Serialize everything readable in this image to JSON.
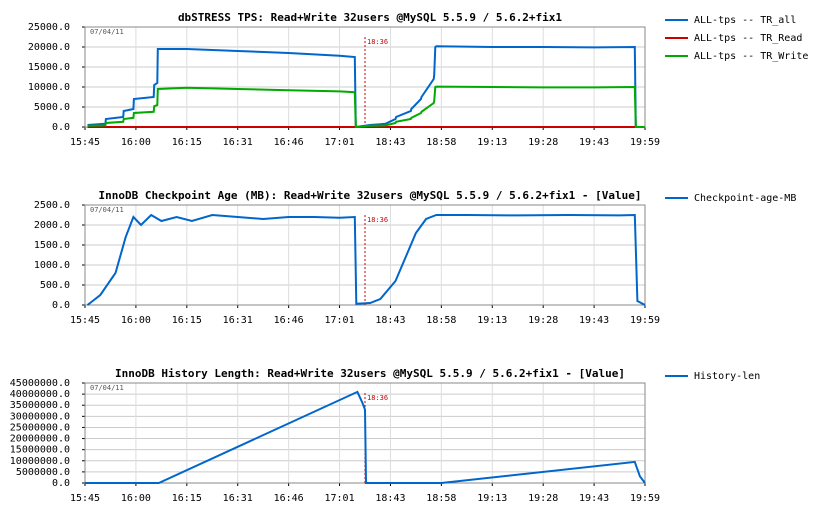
{
  "chart_data": [
    {
      "type": "line",
      "title": "dbSTRESS TPS: Read+Write 32users @MySQL 5.5.9 / 5.6.2+fix1",
      "date": "07/04/11",
      "marker": {
        "x": 5.5,
        "label": "18:36",
        "color": "#cc0000"
      },
      "grid": true,
      "xlim": [
        0,
        11
      ],
      "xticks": [
        {
          "value": 0,
          "label": "15:45"
        },
        {
          "value": 1,
          "label": "16:00"
        },
        {
          "value": 2,
          "label": "16:15"
        },
        {
          "value": 3,
          "label": "16:31"
        },
        {
          "value": 4,
          "label": "16:46"
        },
        {
          "value": 5,
          "label": "17:01"
        },
        {
          "value": 6,
          "label": "18:43"
        },
        {
          "value": 7,
          "label": "18:58"
        },
        {
          "value": 8,
          "label": "19:13"
        },
        {
          "value": 9,
          "label": "19:28"
        },
        {
          "value": 10,
          "label": "19:43"
        },
        {
          "value": 11,
          "label": "19:59"
        }
      ],
      "ylim": [
        0,
        25000
      ],
      "yticks": [
        {
          "value": 0,
          "label": "0.0"
        },
        {
          "value": 5000,
          "label": "5000.0"
        },
        {
          "value": 10000,
          "label": "10000.0"
        },
        {
          "value": 15000,
          "label": "15000.0"
        },
        {
          "value": 20000,
          "label": "20000.0"
        },
        {
          "value": 25000,
          "label": "25000.0"
        }
      ],
      "x": [
        0.05,
        0.4,
        0.41,
        0.75,
        0.76,
        0.95,
        0.96,
        1.35,
        1.36,
        1.42,
        1.43,
        2,
        3,
        4,
        5,
        5.3,
        5.32,
        5.6,
        5.9,
        6.1,
        6.11,
        6.4,
        6.41,
        6.6,
        6.61,
        6.85,
        6.86,
        6.88,
        6.9,
        8,
        9,
        10,
        10.8,
        10.82,
        11
      ],
      "series": [
        {
          "name": "ALL-tps -- TR_all",
          "color": "#0066cc",
          "values": [
            500,
            800,
            2000,
            2500,
            4000,
            4500,
            7000,
            7500,
            10500,
            11000,
            19500,
            19500,
            19000,
            18500,
            17800,
            17500,
            0,
            500,
            800,
            2000,
            2500,
            4000,
            4500,
            7000,
            7500,
            12000,
            13000,
            20000,
            20200,
            20000,
            20000,
            19900,
            20000,
            0,
            0
          ]
        },
        {
          "name": "ALL-tps -- TR_Read",
          "color": "#cc0000",
          "values": [
            0,
            0,
            0,
            0,
            0,
            0,
            0,
            0,
            0,
            0,
            0,
            0,
            0,
            0,
            0,
            0,
            0,
            0,
            0,
            0,
            0,
            0,
            0,
            0,
            0,
            0,
            0,
            0,
            0,
            0,
            0,
            0,
            0,
            0,
            0
          ]
        },
        {
          "name": "ALL-tps -- TR_Write",
          "color": "#00aa00",
          "values": [
            300,
            400,
            1000,
            1300,
            2000,
            2300,
            3500,
            3800,
            5200,
            5500,
            9500,
            9800,
            9500,
            9200,
            8900,
            8700,
            0,
            300,
            400,
            1000,
            1300,
            2000,
            2300,
            3500,
            3800,
            6000,
            6500,
            10000,
            10100,
            10000,
            9900,
            9900,
            10000,
            0,
            0
          ]
        }
      ]
    },
    {
      "type": "line",
      "title": "InnoDB Checkpoint Age (MB): Read+Write 32users @MySQL 5.5.9 / 5.6.2+fix1 - [Value]",
      "date": "07/04/11",
      "marker": {
        "x": 5.5,
        "label": "18:36",
        "color": "#cc0000"
      },
      "grid": true,
      "xlim": [
        0,
        11
      ],
      "xticks": [
        {
          "value": 0,
          "label": "15:45"
        },
        {
          "value": 1,
          "label": "16:00"
        },
        {
          "value": 2,
          "label": "16:15"
        },
        {
          "value": 3,
          "label": "16:31"
        },
        {
          "value": 4,
          "label": "16:46"
        },
        {
          "value": 5,
          "label": "17:01"
        },
        {
          "value": 6,
          "label": "18:43"
        },
        {
          "value": 7,
          "label": "18:58"
        },
        {
          "value": 8,
          "label": "19:13"
        },
        {
          "value": 9,
          "label": "19:28"
        },
        {
          "value": 10,
          "label": "19:43"
        },
        {
          "value": 11,
          "label": "19:59"
        }
      ],
      "ylim": [
        0,
        2500
      ],
      "yticks": [
        {
          "value": 0,
          "label": "0.0"
        },
        {
          "value": 500,
          "label": "500.0"
        },
        {
          "value": 1000,
          "label": "1000.0"
        },
        {
          "value": 1500,
          "label": "1500.0"
        },
        {
          "value": 2000,
          "label": "2000.0"
        },
        {
          "value": 2500,
          "label": "2500.0"
        }
      ],
      "x": [
        0.05,
        0.3,
        0.6,
        0.8,
        0.95,
        1.1,
        1.3,
        1.5,
        1.8,
        2.1,
        2.5,
        3,
        3.5,
        4,
        4.5,
        5,
        5.3,
        5.33,
        5.6,
        5.8,
        6.1,
        6.3,
        6.5,
        6.7,
        6.9,
        7.5,
        8.5,
        9.5,
        10.5,
        10.8,
        10.85,
        11
      ],
      "series": [
        {
          "name": "Checkpoint-age-MB",
          "color": "#0066cc",
          "values": [
            0,
            250,
            800,
            1700,
            2200,
            2000,
            2250,
            2100,
            2200,
            2100,
            2250,
            2200,
            2150,
            2200,
            2200,
            2180,
            2200,
            30,
            50,
            150,
            600,
            1200,
            1800,
            2150,
            2250,
            2250,
            2240,
            2250,
            2240,
            2250,
            100,
            0
          ]
        }
      ]
    },
    {
      "type": "line",
      "title": "InnoDB History Length: Read+Write 32users @MySQL 5.5.9 / 5.6.2+fix1 - [Value]",
      "date": "07/04/11",
      "marker": {
        "x": 5.5,
        "label": "18:36",
        "color": "#cc0000"
      },
      "grid": true,
      "xlim": [
        0,
        11
      ],
      "xticks": [
        {
          "value": 0,
          "label": "15:45"
        },
        {
          "value": 1,
          "label": "16:00"
        },
        {
          "value": 2,
          "label": "16:15"
        },
        {
          "value": 3,
          "label": "16:31"
        },
        {
          "value": 4,
          "label": "16:46"
        },
        {
          "value": 5,
          "label": "17:01"
        },
        {
          "value": 6,
          "label": "18:43"
        },
        {
          "value": 7,
          "label": "18:58"
        },
        {
          "value": 8,
          "label": "19:13"
        },
        {
          "value": 9,
          "label": "19:28"
        },
        {
          "value": 10,
          "label": "19:43"
        },
        {
          "value": 11,
          "label": "19:59"
        }
      ],
      "ylim": [
        0,
        45000000
      ],
      "yticks": [
        {
          "value": 0,
          "label": "0.0"
        },
        {
          "value": 5000000,
          "label": "5000000.0"
        },
        {
          "value": 10000000,
          "label": "10000000.0"
        },
        {
          "value": 15000000,
          "label": "15000000.0"
        },
        {
          "value": 20000000,
          "label": "20000000.0"
        },
        {
          "value": 25000000,
          "label": "25000000.0"
        },
        {
          "value": 30000000,
          "label": "30000000.0"
        },
        {
          "value": 35000000,
          "label": "35000000.0"
        },
        {
          "value": 40000000,
          "label": "40000000.0"
        },
        {
          "value": 45000000,
          "label": "45000000.0"
        }
      ],
      "x": [
        0,
        1.45,
        5.35,
        5.45,
        5.5,
        5.52,
        5.6,
        7,
        10.8,
        10.9,
        11
      ],
      "series": [
        {
          "name": "History-len",
          "color": "#0066cc",
          "values": [
            0,
            0,
            41000000,
            36000000,
            33000000,
            0,
            0,
            0,
            9500000,
            3000000,
            0
          ]
        }
      ]
    }
  ]
}
